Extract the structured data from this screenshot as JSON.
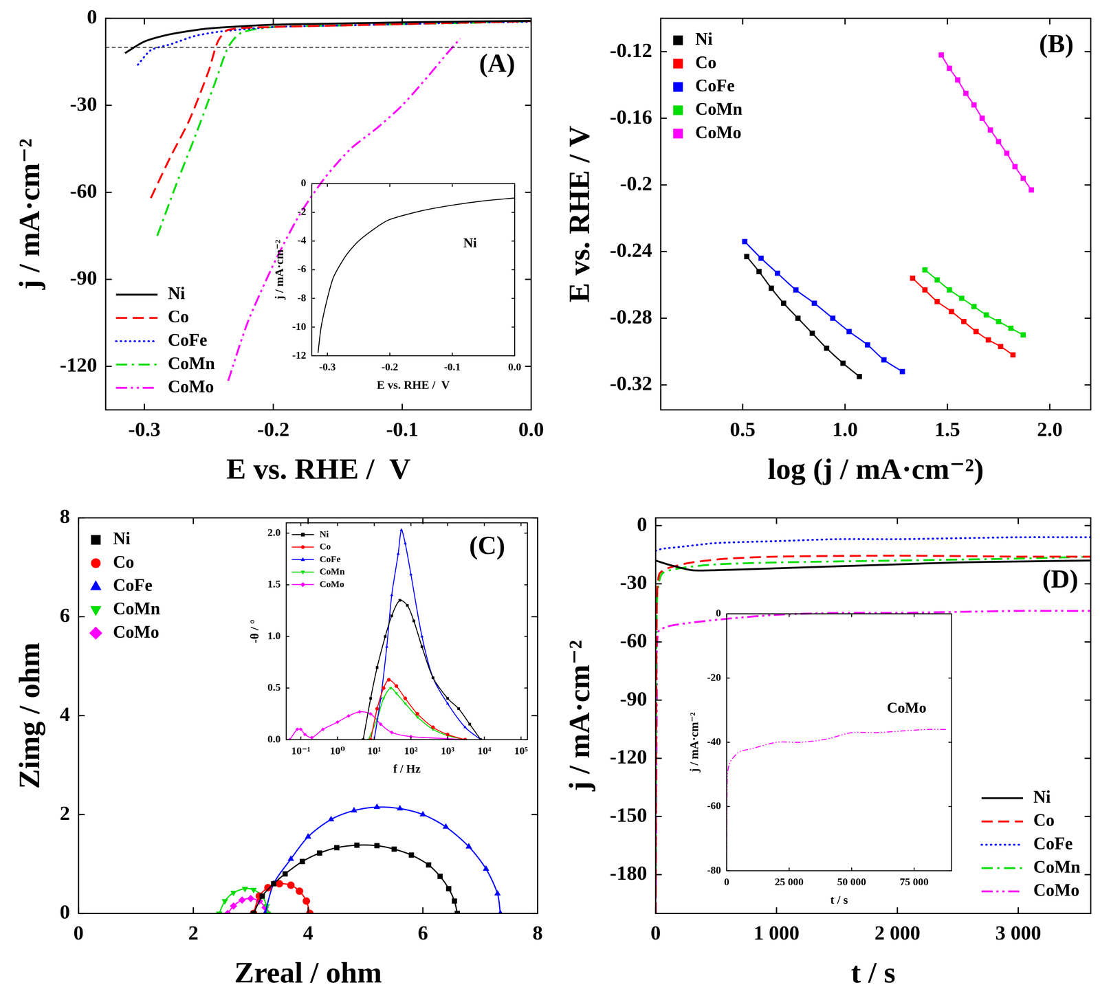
{
  "chart_data": [
    {
      "type": "line",
      "annotation": "(A)",
      "x_label": "E vs. RHE /  V",
      "y_label": "j / mA·cm⁻²",
      "xlim": [
        -0.33,
        0
      ],
      "ylim": [
        -135,
        0
      ],
      "xticks": [
        -0.3,
        -0.2,
        -0.1,
        {
          "value": 0,
          "label": "0.0"
        }
      ],
      "yticks": [
        0,
        -30,
        -60,
        -90,
        -120
      ],
      "grid": false,
      "legend": "lower left",
      "reference_line": -10,
      "series": [
        {
          "name": "Ni",
          "color": "#000000",
          "line_style": "solid",
          "x": [
            -0.315,
            -0.3,
            -0.28,
            -0.25,
            -0.2,
            -0.15,
            -0.1,
            -0.05,
            0
          ],
          "values": [
            -12,
            -8,
            -5.5,
            -3.5,
            -2.2,
            -1.8,
            -1.4,
            -1.1,
            -0.9
          ]
        },
        {
          "name": "Co",
          "color": "#ff0000",
          "line_style": "dashed",
          "x": [
            -0.295,
            -0.28,
            -0.265,
            -0.25,
            -0.243,
            -0.235,
            -0.2,
            -0.15,
            -0.1,
            -0.05,
            0
          ],
          "values": [
            -62,
            -48,
            -35,
            -18,
            -8,
            -4,
            -3,
            -2.5,
            -2,
            -1.5,
            -1
          ]
        },
        {
          "name": "CoFe",
          "color": "#0000ff",
          "line_style": "dotted",
          "x": [
            -0.305,
            -0.295,
            -0.28,
            -0.26,
            -0.24,
            -0.2,
            -0.15,
            -0.1,
            -0.05,
            0
          ],
          "values": [
            -16,
            -11,
            -9,
            -6,
            -4.5,
            -3,
            -2.5,
            -2,
            -1.5,
            -1.2
          ]
        },
        {
          "name": "CoMn",
          "color": "#00dd00",
          "line_style": "dashdot",
          "x": [
            -0.29,
            -0.275,
            -0.26,
            -0.245,
            -0.235,
            -0.225,
            -0.2,
            -0.15,
            -0.1,
            -0.05,
            0
          ],
          "values": [
            -75,
            -57,
            -40,
            -22,
            -10,
            -5,
            -3,
            -2.5,
            -2,
            -1.6,
            -1
          ]
        },
        {
          "name": "CoMo",
          "color": "#ff00ff",
          "line_style": "dashdotdot",
          "x": [
            -0.235,
            -0.22,
            -0.2,
            -0.18,
            -0.16,
            -0.14,
            -0.12,
            -0.1,
            -0.08,
            -0.065,
            -0.055
          ],
          "values": [
            -125,
            -105,
            -85,
            -68,
            -55,
            -45,
            -38,
            -30,
            -20,
            -12,
            -7
          ]
        }
      ]
    },
    {
      "type": "line",
      "annotation": "Ni",
      "x_label": "E vs. RHE /  V",
      "y_label": "j / mA·cm⁻²",
      "xlim": [
        -0.325,
        0
      ],
      "ylim": [
        -12,
        0
      ],
      "xticks": [
        -0.3,
        -0.2,
        -0.1,
        {
          "value": 0,
          "label": "0.0"
        }
      ],
      "yticks": [
        0,
        -2,
        -4,
        -6,
        -8,
        -10,
        -12
      ],
      "grid": false,
      "series": [
        {
          "name": "Ni",
          "color": "#000000",
          "line_style": "solid",
          "x": [
            -0.315,
            -0.31,
            -0.3,
            -0.29,
            -0.27,
            -0.25,
            -0.22,
            -0.2,
            -0.15,
            -0.1,
            -0.05,
            0
          ],
          "values": [
            -11.8,
            -10,
            -8,
            -6.5,
            -5,
            -4,
            -3,
            -2.5,
            -1.9,
            -1.5,
            -1.2,
            -1
          ]
        }
      ]
    },
    {
      "type": "scatter",
      "annotation": "(B)",
      "x_label": "log (j / mA·cm⁻²)",
      "y_label": "E vs. RHE / V",
      "xlim": [
        0.1,
        2.2
      ],
      "ylim": [
        -0.335,
        -0.1
      ],
      "xticks": [
        0.5,
        {
          "value": 1,
          "label": "1.0"
        },
        1.5,
        {
          "value": 2,
          "label": "2.0"
        }
      ],
      "yticks": [
        -0.12,
        -0.16,
        -0.2,
        -0.24,
        -0.28,
        -0.32
      ],
      "grid": false,
      "legend": "upper left",
      "series": [
        {
          "name": "Ni",
          "color": "#000000",
          "marker": "square",
          "line_style": "solid",
          "x": [
            0.52,
            0.58,
            0.64,
            0.7,
            0.77,
            0.84,
            0.91,
            0.99,
            1.07
          ],
          "values": [
            -0.243,
            -0.252,
            -0.262,
            -0.271,
            -0.28,
            -0.289,
            -0.298,
            -0.307,
            -0.315
          ]
        },
        {
          "name": "Co",
          "color": "#ff0000",
          "marker": "square",
          "line_style": "solid",
          "x": [
            1.33,
            1.39,
            1.45,
            1.52,
            1.58,
            1.64,
            1.7,
            1.76,
            1.82
          ],
          "values": [
            -0.256,
            -0.263,
            -0.27,
            -0.276,
            -0.282,
            -0.288,
            -0.293,
            -0.297,
            -0.302
          ]
        },
        {
          "name": "CoFe",
          "color": "#0000ff",
          "marker": "square",
          "line_style": "solid",
          "x": [
            0.51,
            0.59,
            0.67,
            0.76,
            0.85,
            0.94,
            1.02,
            1.11,
            1.19,
            1.28
          ],
          "values": [
            -0.234,
            -0.244,
            -0.253,
            -0.263,
            -0.271,
            -0.28,
            -0.288,
            -0.296,
            -0.305,
            -0.312
          ]
        },
        {
          "name": "CoMn",
          "color": "#00dd00",
          "marker": "square",
          "line_style": "solid",
          "x": [
            1.39,
            1.45,
            1.51,
            1.57,
            1.63,
            1.69,
            1.75,
            1.81,
            1.87
          ],
          "values": [
            -0.251,
            -0.257,
            -0.263,
            -0.268,
            -0.273,
            -0.278,
            -0.282,
            -0.286,
            -0.29
          ]
        },
        {
          "name": "CoMo",
          "color": "#ff00ff",
          "marker": "square",
          "line_style": "solid",
          "x": [
            1.47,
            1.51,
            1.55,
            1.59,
            1.63,
            1.67,
            1.71,
            1.75,
            1.79,
            1.83,
            1.87,
            1.91
          ],
          "values": [
            -0.122,
            -0.13,
            -0.137,
            -0.145,
            -0.152,
            -0.16,
            -0.167,
            -0.174,
            -0.181,
            -0.189,
            -0.196,
            -0.203
          ]
        }
      ]
    },
    {
      "type": "scatter",
      "annotation": "(C)",
      "x_label": "Zreal / ohm",
      "y_label": "Zimg / ohm",
      "xlim": [
        0,
        8
      ],
      "ylim": [
        0,
        8
      ],
      "xticks": [
        0,
        2,
        4,
        6,
        8
      ],
      "yticks": [
        0,
        2,
        4,
        6,
        8
      ],
      "grid": false,
      "legend": "upper left",
      "series": [
        {
          "name": "Ni",
          "color": "#000000",
          "marker": "square",
          "line_style": "solid",
          "x": [
            3.05,
            3.2,
            3.4,
            3.6,
            3.9,
            4.2,
            4.5,
            4.85,
            5.2,
            5.5,
            5.8,
            6.1,
            6.3,
            6.45,
            6.55,
            6.6
          ],
          "values": [
            0,
            0.35,
            0.6,
            0.8,
            1.05,
            1.22,
            1.33,
            1.38,
            1.37,
            1.3,
            1.18,
            0.98,
            0.75,
            0.5,
            0.25,
            0
          ]
        },
        {
          "name": "Co",
          "color": "#ff0000",
          "marker": "circle",
          "line_style": "solid",
          "x": [
            3.05,
            3.15,
            3.3,
            3.5,
            3.7,
            3.85,
            3.97,
            4.03
          ],
          "values": [
            0,
            0.35,
            0.52,
            0.6,
            0.57,
            0.45,
            0.25,
            0
          ]
        },
        {
          "name": "CoFe",
          "color": "#0000ff",
          "marker": "triangle",
          "line_style": "solid",
          "x": [
            3.25,
            3.4,
            3.7,
            4.0,
            4.4,
            4.8,
            5.2,
            5.6,
            6.0,
            6.4,
            6.8,
            7.1,
            7.3,
            7.35
          ],
          "values": [
            0,
            0.6,
            1.1,
            1.55,
            1.9,
            2.08,
            2.15,
            2.12,
            2.0,
            1.75,
            1.35,
            0.9,
            0.4,
            0
          ]
        },
        {
          "name": "CoMn",
          "color": "#00dd00",
          "marker": "triangle_down",
          "line_style": "solid",
          "x": [
            2.45,
            2.55,
            2.7,
            2.9,
            3.05,
            3.2,
            3.28,
            3.3
          ],
          "values": [
            0,
            0.25,
            0.42,
            0.5,
            0.48,
            0.35,
            0.15,
            0
          ]
        },
        {
          "name": "CoMo",
          "color": "#ff00ff",
          "marker": "diamond",
          "line_style": "solid",
          "x": [
            2.6,
            2.7,
            2.85,
            3.0,
            3.15,
            3.25,
            3.3
          ],
          "values": [
            0,
            0.15,
            0.27,
            0.3,
            0.25,
            0.12,
            0
          ]
        }
      ]
    },
    {
      "type": "scatter",
      "x_label": "f / Hz",
      "y_label": "-θ / °",
      "log": "x",
      "xlim": [
        0.04,
        150000
      ],
      "ylim": [
        0,
        2.1
      ],
      "xticks": [
        {
          "value": 0.1,
          "label": "10⁻¹"
        },
        {
          "value": 1,
          "label": "10⁰"
        },
        {
          "value": 10,
          "label": "10¹"
        },
        {
          "value": 100,
          "label": "10²"
        },
        {
          "value": 1000,
          "label": "10³"
        },
        {
          "value": 10000,
          "label": "10⁴"
        },
        {
          "value": 100000,
          "label": "10⁵"
        }
      ],
      "yticks": [
        {
          "value": 0,
          "label": "0.0"
        },
        0.5,
        {
          "value": 1,
          "label": "1.0"
        },
        1.5,
        {
          "value": 2,
          "label": "2.0"
        }
      ],
      "grid": false,
      "legend": "upper left",
      "series": [
        {
          "name": "Ni",
          "color": "#000000",
          "marker": "square",
          "line_style": "solid",
          "x": [
            5,
            8,
            12,
            20,
            30,
            50,
            80,
            120,
            200,
            400,
            1000,
            2000,
            4000,
            8000
          ],
          "values": [
            0,
            0.4,
            0.7,
            1.0,
            1.2,
            1.35,
            1.3,
            1.15,
            0.9,
            0.6,
            0.4,
            0.3,
            0.15,
            0
          ]
        },
        {
          "name": "Co",
          "color": "#ff0000",
          "marker": "circle",
          "line_style": "solid",
          "x": [
            8,
            12,
            18,
            25,
            40,
            70,
            150,
            400,
            1000,
            3000
          ],
          "values": [
            0,
            0.3,
            0.5,
            0.58,
            0.52,
            0.4,
            0.25,
            0.12,
            0.05,
            0
          ]
        },
        {
          "name": "CoFe",
          "color": "#0000ff",
          "marker": "triangle",
          "line_style": "solid",
          "x": [
            10,
            15,
            22,
            30,
            45,
            55,
            70,
            100,
            200,
            400,
            1000,
            3000,
            8000
          ],
          "values": [
            0,
            0.4,
            0.9,
            1.4,
            1.8,
            2.03,
            1.9,
            1.6,
            1.0,
            0.6,
            0.35,
            0.12,
            0
          ]
        },
        {
          "name": "CoMn",
          "color": "#00dd00",
          "marker": "triangle_down",
          "line_style": "solid",
          "x": [
            7,
            12,
            18,
            28,
            40,
            70,
            150,
            400,
            1000,
            3000
          ],
          "values": [
            0,
            0.2,
            0.4,
            0.5,
            0.45,
            0.35,
            0.22,
            0.1,
            0.04,
            0
          ]
        },
        {
          "name": "CoMo",
          "color": "#ff00ff",
          "marker": "diamond",
          "line_style": "solid",
          "x": [
            0.05,
            0.08,
            0.1,
            0.13,
            0.2,
            0.4,
            1,
            2,
            4,
            8,
            15,
            30,
            100,
            1000,
            3000
          ],
          "values": [
            0,
            0.1,
            0.1,
            0.05,
            0.02,
            0.1,
            0.17,
            0.23,
            0.27,
            0.25,
            0.15,
            0.07,
            0.03,
            0.01,
            0
          ]
        }
      ]
    },
    {
      "type": "line",
      "annotation": "(D)",
      "x_label": "t / s",
      "y_label": "j / mA·cm⁻²",
      "xlim": [
        0,
        3600
      ],
      "ylim": [
        -200,
        4
      ],
      "xticks": [
        0,
        {
          "value": 1000,
          "label": "1 000"
        },
        {
          "value": 2000,
          "label": "2 000"
        },
        {
          "value": 3000,
          "label": "3 000"
        }
      ],
      "yticks": [
        0,
        -30,
        -60,
        -90,
        -120,
        -150,
        -180
      ],
      "grid": false,
      "legend": "lower right",
      "series": [
        {
          "name": "Ni",
          "color": "#000000",
          "line_style": "solid",
          "x": [
            0,
            100,
            300,
            500,
            1000,
            1500,
            2000,
            2500,
            3000,
            3600
          ],
          "values": [
            -18,
            -20,
            -23,
            -23,
            -22,
            -21,
            -20,
            -19,
            -18.5,
            -18
          ]
        },
        {
          "name": "Co",
          "color": "#ff0000",
          "line_style": "dashed",
          "x": [
            0,
            10,
            30,
            100,
            300,
            600,
            1000,
            2000,
            3000,
            3600
          ],
          "values": [
            -200,
            -40,
            -25,
            -22,
            -19,
            -17,
            -16,
            -15.5,
            -16,
            -16
          ]
        },
        {
          "name": "CoFe",
          "color": "#0000ff",
          "line_style": "dotted",
          "x": [
            0,
            50,
            200,
            500,
            1000,
            1500,
            2000,
            2500,
            3000,
            3600
          ],
          "values": [
            -13,
            -12,
            -11,
            -9,
            -8,
            -7,
            -7,
            -6.5,
            -6,
            -6
          ]
        },
        {
          "name": "CoMn",
          "color": "#00dd00",
          "line_style": "dashdot",
          "x": [
            0,
            10,
            50,
            200,
            500,
            1000,
            2000,
            3000,
            3600
          ],
          "values": [
            -180,
            -40,
            -25,
            -22,
            -20,
            -19,
            -18,
            -17,
            -16
          ]
        },
        {
          "name": "CoMo",
          "color": "#ff00ff",
          "line_style": "dashdotdot",
          "x": [
            0,
            10,
            20,
            100,
            300,
            600,
            1000,
            1500,
            2000,
            2500,
            3000,
            3600
          ],
          "values": [
            -200,
            -90,
            -55,
            -52,
            -50,
            -48,
            -46,
            -45,
            -45,
            -44.5,
            -44,
            -44
          ]
        }
      ]
    },
    {
      "type": "line",
      "annotation": "CoMo",
      "x_label": "t / s",
      "y_label": "j / mA·cm⁻²",
      "xlim": [
        0,
        90000
      ],
      "ylim": [
        -80,
        0
      ],
      "xticks": [
        0,
        {
          "value": 25000,
          "label": "25 000"
        },
        {
          "value": 50000,
          "label": "50 000"
        },
        {
          "value": 75000,
          "label": "75 000"
        }
      ],
      "yticks": [
        0,
        -20,
        -40,
        -60,
        -80
      ],
      "grid": false,
      "series": [
        {
          "name": "CoMo",
          "color": "#ff00ff",
          "line_style": "dashdotdot",
          "x": [
            0,
            300,
            1500,
            5000,
            10000,
            20000,
            30000,
            40000,
            50000,
            60000,
            70000,
            80000,
            88000
          ],
          "values": [
            -78,
            -50,
            -46,
            -43,
            -42,
            -40,
            -40,
            -39,
            -37,
            -37,
            -36.5,
            -36,
            -36
          ]
        }
      ]
    }
  ]
}
